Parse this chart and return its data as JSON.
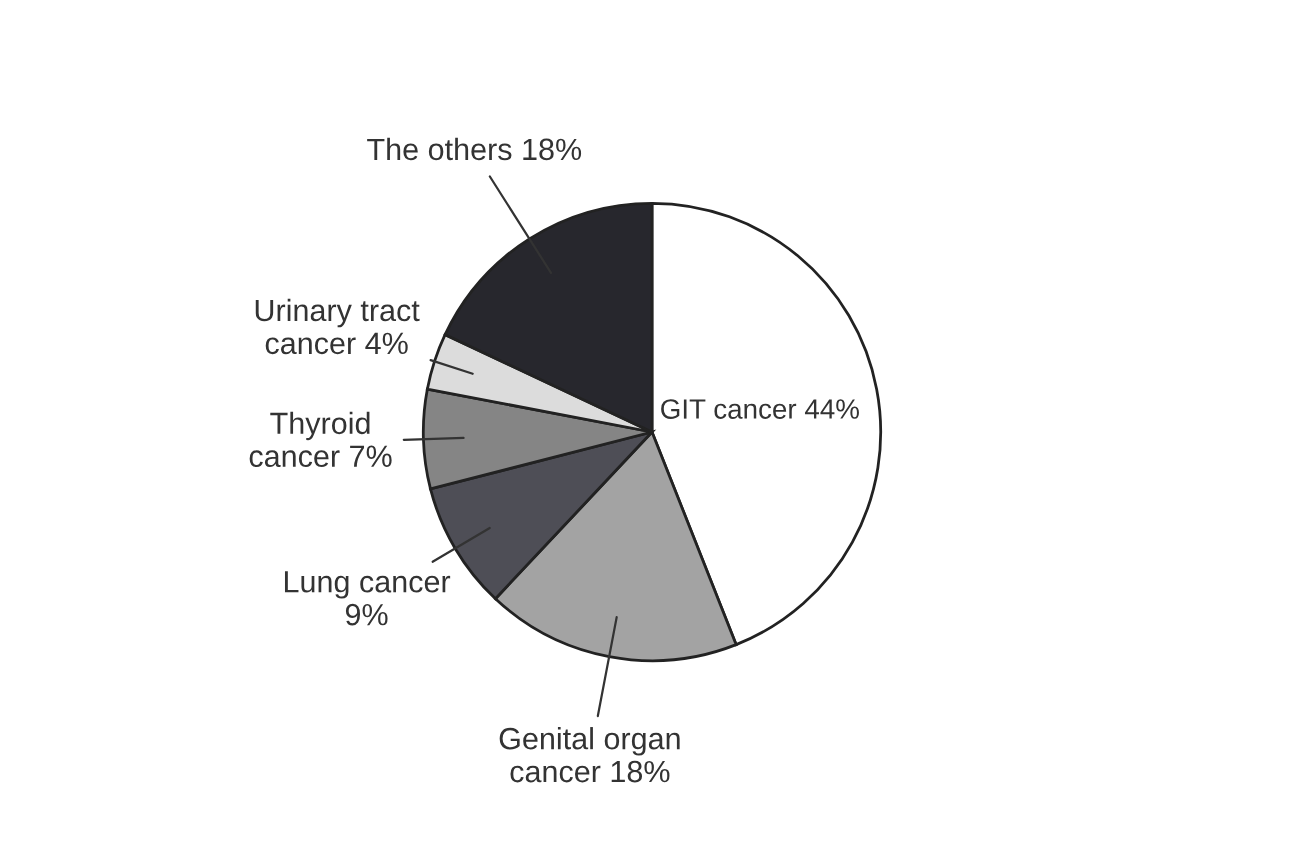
{
  "chart_data": {
    "type": "pie",
    "categories": [
      "GIT cancer 44%",
      "Genital organ\ncancer 18%",
      "Lung cancer\n9%",
      "Thyroid\ncancer 7%",
      "Urinary tract\ncancer 4%",
      "The others 18%"
    ],
    "values": [
      44,
      18,
      9,
      7,
      4,
      18
    ],
    "colors": [
      "#ffffff",
      "#a3a3a3",
      "#4e4e56",
      "#858585",
      "#dcdcdc",
      "#27272d"
    ]
  }
}
